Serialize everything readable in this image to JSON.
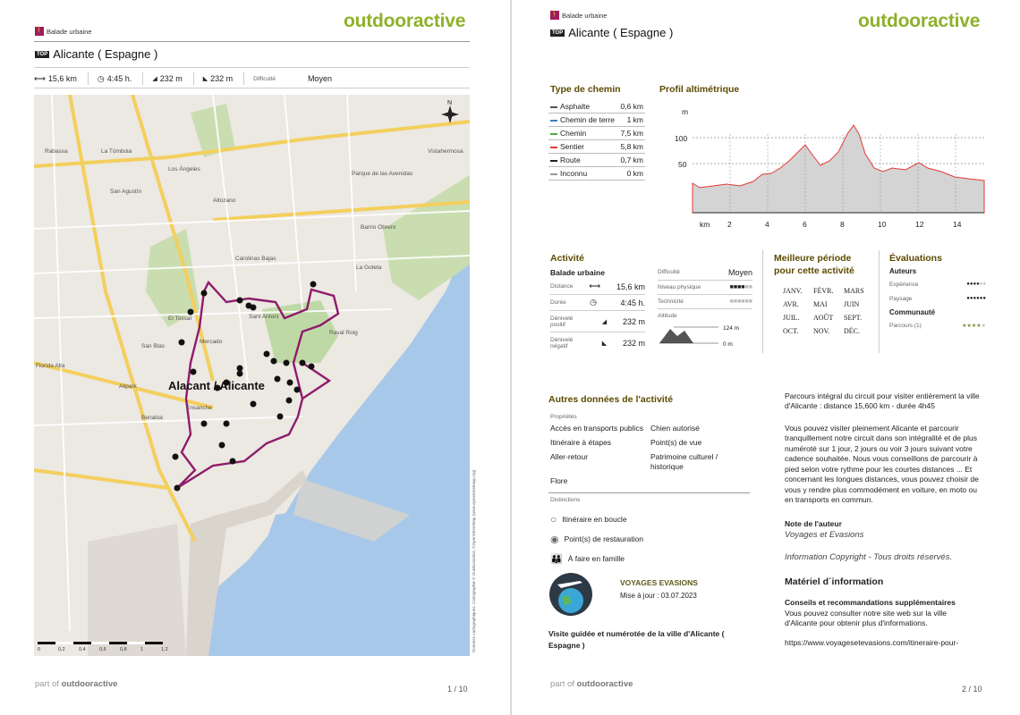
{
  "brand": "outdooractive",
  "footer": {
    "part_of": "part of",
    "brand": "outdooractive"
  },
  "page1": {
    "category": "Balade urbaine",
    "top_badge": "TOP",
    "title": "Alicante ( Espagne )",
    "stats": {
      "distance": "15,6 km",
      "duration": "4:45 h.",
      "ascent": "232 m",
      "descent": "232 m",
      "difficulty_label": "Difficulté",
      "difficulty_value": "Moyen"
    },
    "map": {
      "city_label": "Alacant / Alicante",
      "places": [
        "Rabassa",
        "La Tómbola",
        "Los Ángeles",
        "San Agustín",
        "Altozano",
        "Parque de las Avenidas",
        "Vistahermosa",
        "Barrio Obrero",
        "Carolinas Bajas",
        "Sant Antoni",
        "El Tossal",
        "Mercado",
        "San Blas",
        "Raval Roig",
        "La Goteta",
        "Ensanche",
        "Benalúa",
        "Alipark",
        "Florida Alta"
      ],
      "scale": [
        "0",
        "0,2",
        "0,4",
        "0,6",
        "0,8",
        "1",
        "1,2"
      ],
      "credits": "Données cartographiques: Cartographie © Outdooractive, ©OpenStreetMap (www.openstreetmap.org)"
    },
    "page_number": "1 / 10"
  },
  "page2": {
    "category": "Balade urbaine",
    "top_badge": "TOP",
    "title": "Alicante ( Espagne )",
    "path_types": {
      "title": "Type de chemin",
      "rows": [
        {
          "name": "Asphalte",
          "value": "0,6 km",
          "color": "#555555"
        },
        {
          "name": "Chemin de terre",
          "value": "1 km",
          "color": "#3a7fc2"
        },
        {
          "name": "Chemin",
          "value": "7,5 km",
          "color": "#4caf3a"
        },
        {
          "name": "Sentier",
          "value": "5,8 km",
          "color": "#e53935"
        },
        {
          "name": "Route",
          "value": "0,7 km",
          "color": "#222222"
        },
        {
          "name": "Inconnu",
          "value": "0 km",
          "color": "#999999"
        }
      ]
    },
    "elevation": {
      "title": "Profil altimétrique",
      "y_unit": "m",
      "y_ticks": [
        "100",
        "50"
      ],
      "x_unit": "km",
      "x_ticks": [
        "2",
        "4",
        "6",
        "8",
        "10",
        "12",
        "14"
      ]
    },
    "activity": {
      "title": "Activité",
      "subtitle": "Balade urbaine",
      "distance_label": "Distance",
      "distance": "15,6 km",
      "duration_label": "Durée",
      "duration": "4:45 h.",
      "ascent_label": "Dénivelé positif",
      "ascent": "232 m",
      "descent_label": "Dénivelé négatif",
      "descent": "232 m",
      "difficulty_label": "Difficulté",
      "difficulty": "Moyen",
      "physical_label": "Niveau physique",
      "technique_label": "Technicité",
      "altitude_label": "Altitude",
      "alt_max": "124 m",
      "alt_min": "0 m"
    },
    "season": {
      "title": "Meilleure période pour cette activité",
      "months": [
        "JANV.",
        "FÉVR.",
        "MARS",
        "AVR.",
        "MAI",
        "JUIN",
        "JUIL.",
        "AOÛT",
        "SEPT.",
        "OCT.",
        "NOV.",
        "DÉC."
      ]
    },
    "ratings": {
      "title": "Évaluations",
      "authors": "Auteurs",
      "experience": "Expérience",
      "landscape": "Paysage",
      "community": "Communauté",
      "route": "Parcours (1)"
    },
    "other": {
      "title": "Autres données de l'activité",
      "props_label": "Propriétés",
      "props": [
        "Accès en transports publics",
        "Chien autorisé",
        "Itinéraire à étapes",
        "Point(s) de vue",
        "Aller-retour",
        "Patrimoine culturel / historique",
        "Flore"
      ],
      "dist_label": "Distinctions",
      "distinctions": [
        "Itinéraire en boucle",
        "Point(s) de restauration",
        "À faire en famille"
      ]
    },
    "author": {
      "name": "VOYAGES EVASIONS",
      "updated": "Mise à jour : 03.07.2023",
      "caption": "Visite guidée et numérotée de la ville d'Alicante ( Espagne )"
    },
    "description": {
      "p1": "Parcours intégral du circuit pour visiter entièrement la ville d'Alicante : distance 15,600 km - durée 4h45",
      "p2": "Vous pouvez visiter pleinement Alicante et parcourir tranquillement notre circuit dans son intégralité et de plus numéroté sur 1 jour, 2 jours ou voir 3 jours suivant votre cadence souhaitée. Nous vous conseillons de parcourir à pied selon votre rythme pour les courtes distances ... Et concernant les longues distances, vous pouvez choisir de vous y rendre plus commodément en voiture, en moto ou en transports en commun.",
      "note_title": "Note de l'auteur",
      "note": "Voyages et Evasions",
      "copyright": "Information Copyright - Tous droits réservés.",
      "material_title": "Matériel d´information",
      "advice_title": "Conseils et recommandations supplémentaires",
      "advice": "Vous pouvez consulter notre site web sur la ville d'Alicante pour obtenir plus d'informations.",
      "url": "https://www.voyagesetevasions.com/itineraire-pour-"
    },
    "page_number": "2 / 10"
  }
}
